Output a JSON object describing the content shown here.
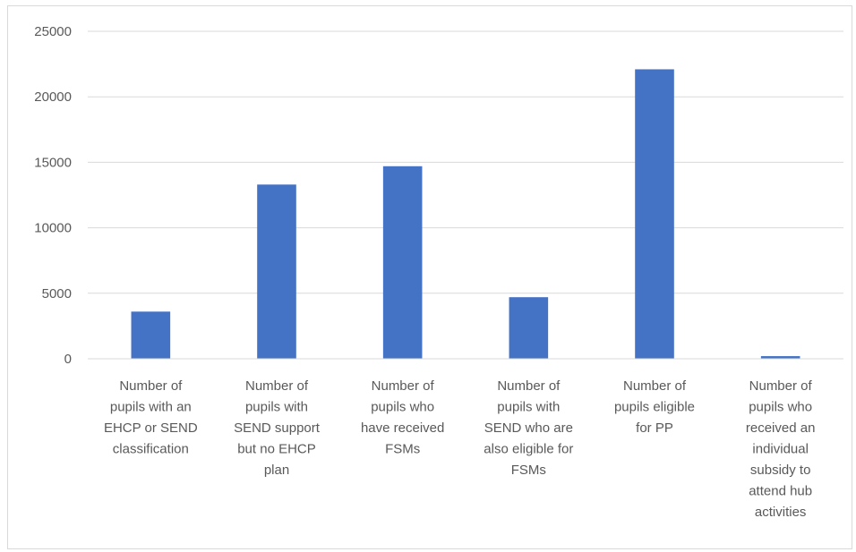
{
  "chart_data": {
    "type": "bar",
    "categories": [
      [
        "Number of",
        "pupils with an",
        "EHCP or SEND",
        "classification"
      ],
      [
        "Number of",
        "pupils with",
        "SEND support",
        "but no EHCP",
        "plan"
      ],
      [
        "Number of",
        "pupils who",
        "have received",
        "FSMs"
      ],
      [
        "Number of",
        "pupils with",
        "SEND who are",
        "also eligible for",
        "FSMs"
      ],
      [
        "Number of",
        "pupils eligible",
        "for PP"
      ],
      [
        "Number of",
        "pupils who",
        "received an",
        "individual",
        "subsidy to",
        "attend hub",
        "activities"
      ]
    ],
    "values": [
      3600,
      13300,
      14700,
      4700,
      22100,
      200
    ],
    "ylim": [
      0,
      25000
    ],
    "yticks": [
      0,
      5000,
      10000,
      15000,
      20000,
      25000
    ],
    "grid": true,
    "bar_color": "#4472c4",
    "grid_color": "#d9d9d9",
    "title": "",
    "xlabel": "",
    "ylabel": ""
  }
}
